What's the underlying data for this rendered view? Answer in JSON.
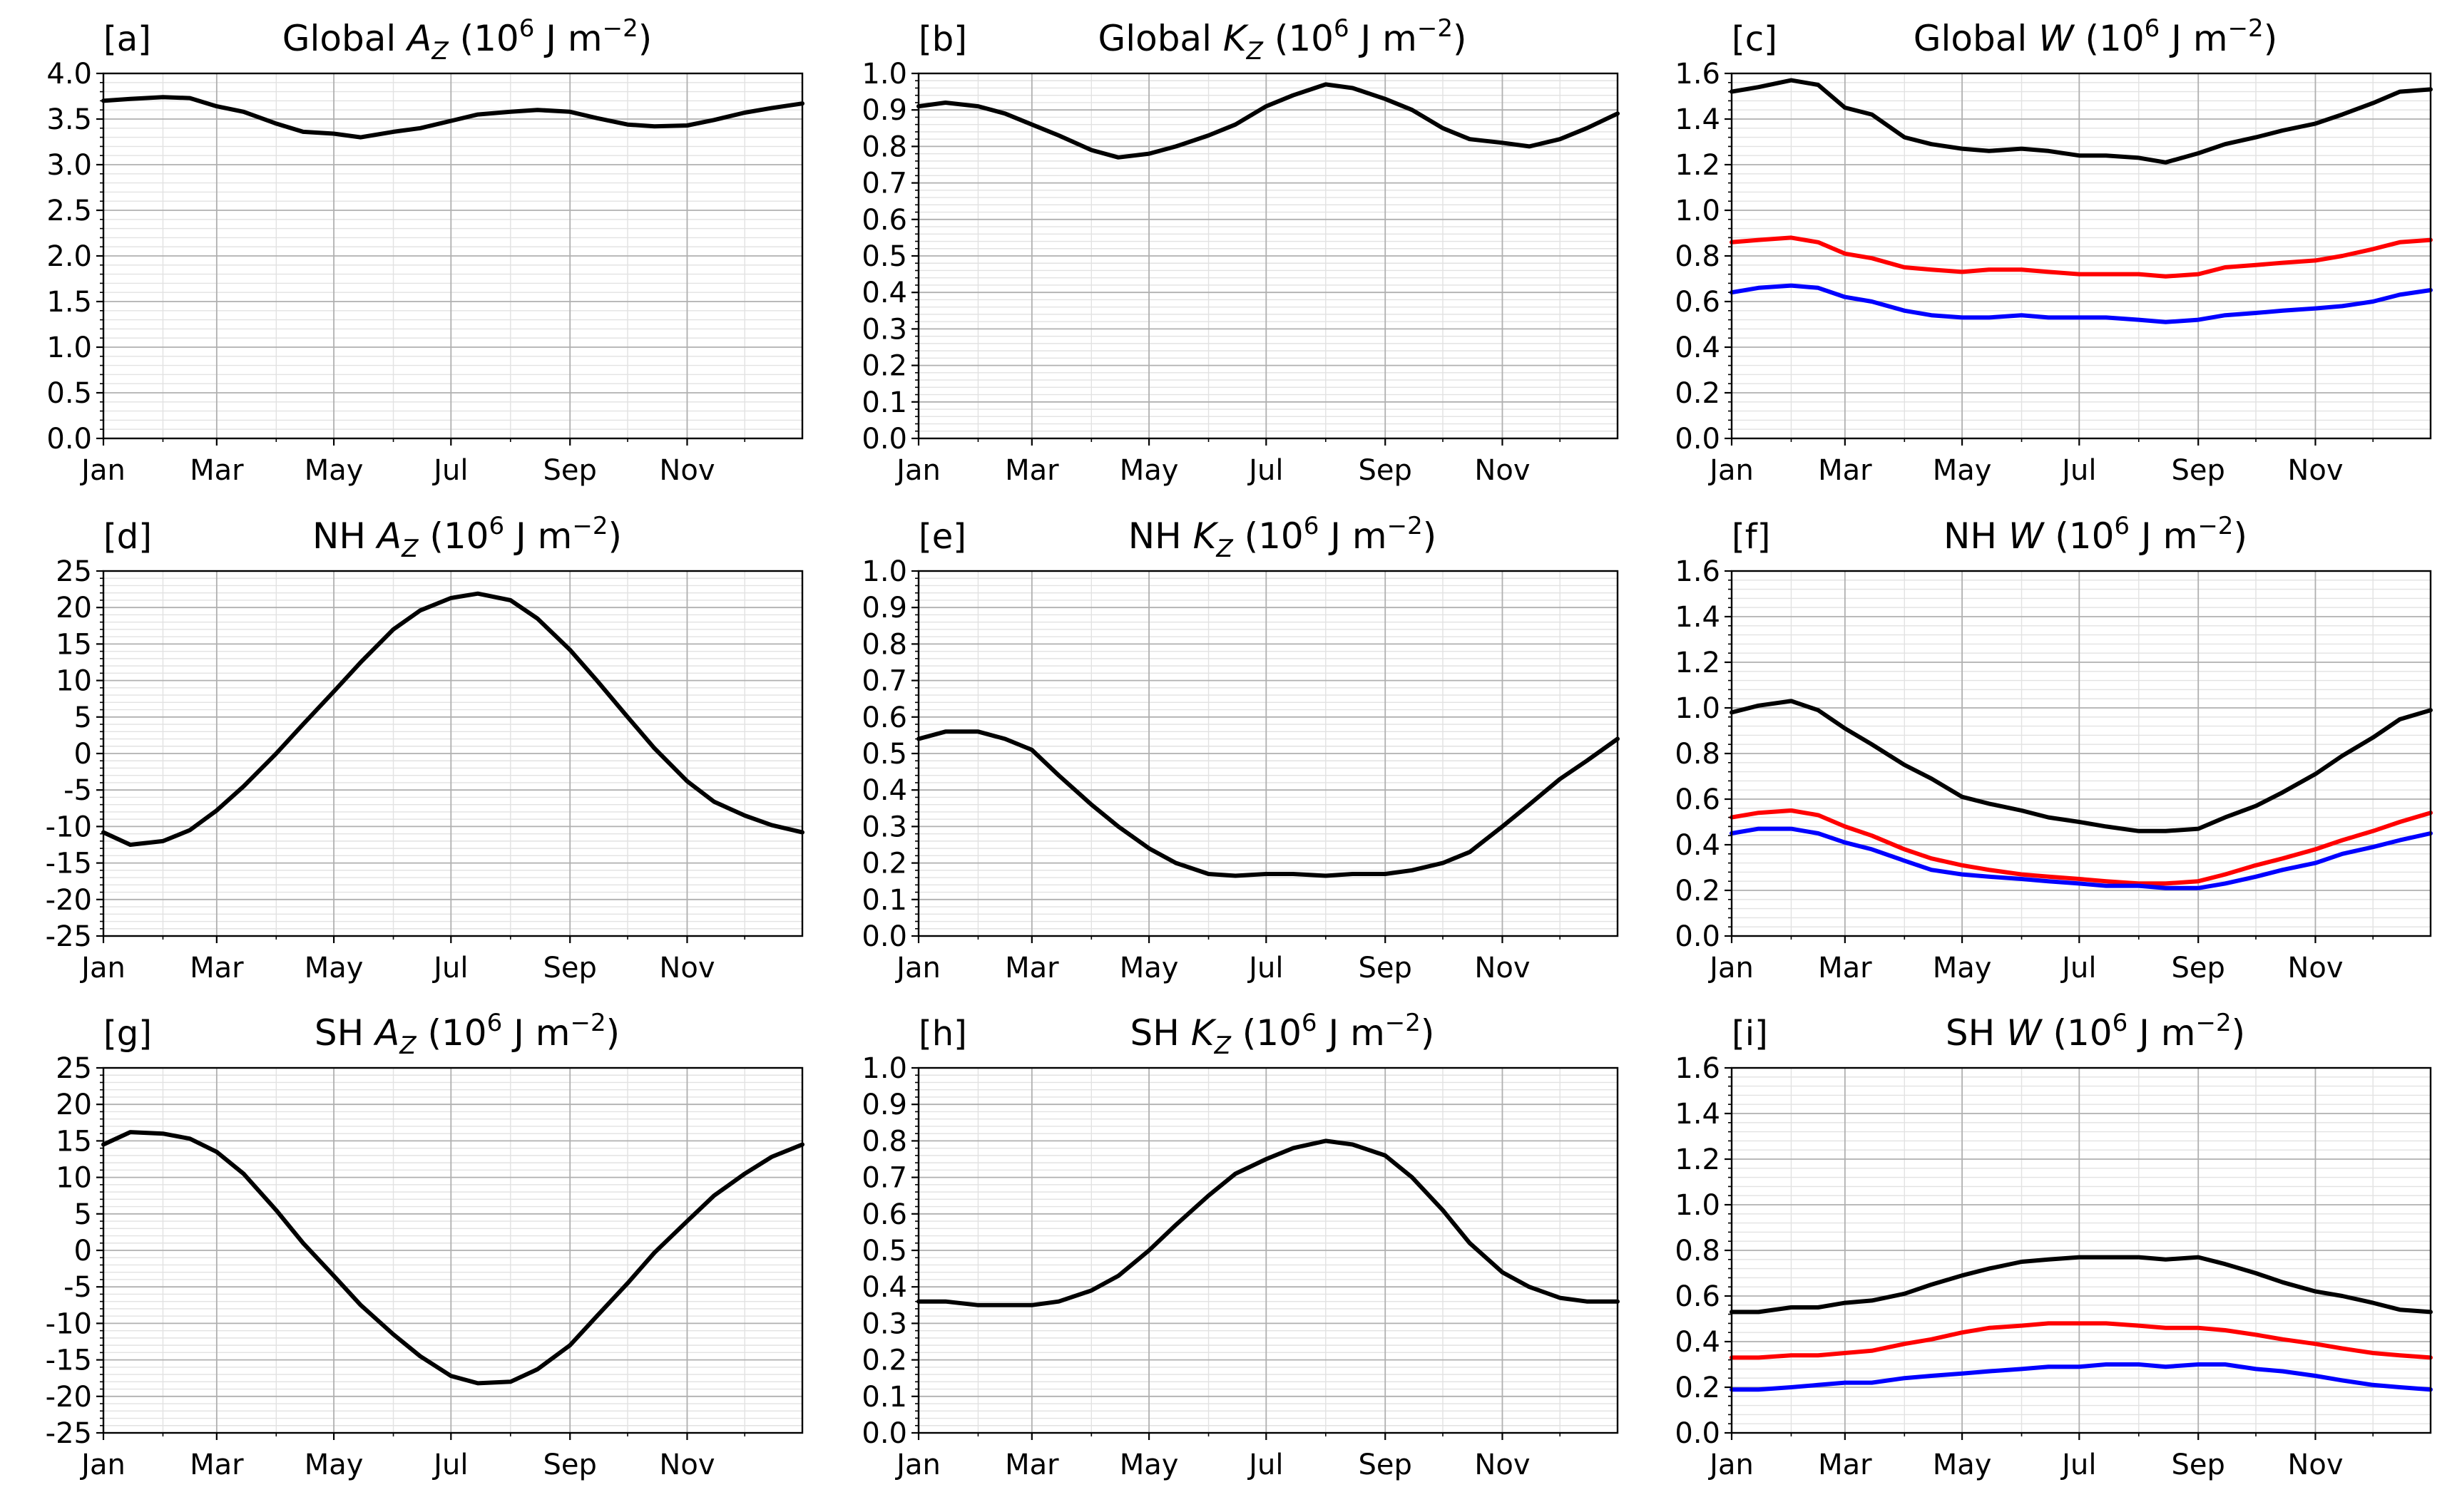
{
  "figure": {
    "months": [
      "Jan",
      "Mar",
      "May",
      "Jul",
      "Sep",
      "Nov"
    ],
    "colors": {
      "line_black": "#000000",
      "line_red": "#ff0000",
      "line_blue": "#0000ff",
      "grid_major": "#b0b0b0",
      "grid_minor": "#e2e2e2"
    }
  },
  "chart_data": [
    {
      "panel": "[a]",
      "title_pre": "Global ",
      "title_sym": "A",
      "title_sub": "Z",
      "type": "line",
      "ylim": [
        0,
        4
      ],
      "yticks": [
        "0.0",
        "0.5",
        "1.0",
        "1.5",
        "2.0",
        "2.5",
        "3.0",
        "3.5",
        "4.0"
      ],
      "x": [
        1,
        15,
        32,
        46,
        60,
        74,
        91,
        105,
        121,
        135,
        152,
        166,
        182,
        196,
        213,
        227,
        244,
        258,
        274,
        288,
        305,
        319,
        335,
        349,
        365
      ],
      "series": [
        {
          "color": "#000000",
          "values": [
            3.7,
            3.72,
            3.74,
            3.73,
            3.64,
            3.58,
            3.45,
            3.36,
            3.34,
            3.3,
            3.36,
            3.4,
            3.48,
            3.55,
            3.58,
            3.6,
            3.58,
            3.51,
            3.44,
            3.42,
            3.43,
            3.49,
            3.57,
            3.62,
            3.67
          ]
        }
      ]
    },
    {
      "panel": "[b]",
      "title_pre": "Global ",
      "title_sym": "K",
      "title_sub": "Z",
      "type": "line",
      "ylim": [
        0,
        1
      ],
      "yticks": [
        "0.0",
        "0.1",
        "0.2",
        "0.3",
        "0.4",
        "0.5",
        "0.6",
        "0.7",
        "0.8",
        "0.9",
        "1.0"
      ],
      "x": [
        1,
        15,
        32,
        46,
        60,
        74,
        91,
        105,
        121,
        135,
        152,
        166,
        182,
        196,
        213,
        227,
        244,
        258,
        274,
        288,
        305,
        319,
        335,
        349,
        365
      ],
      "series": [
        {
          "color": "#000000",
          "values": [
            0.91,
            0.92,
            0.91,
            0.89,
            0.86,
            0.83,
            0.79,
            0.77,
            0.78,
            0.8,
            0.83,
            0.86,
            0.91,
            0.94,
            0.97,
            0.96,
            0.93,
            0.9,
            0.85,
            0.82,
            0.81,
            0.8,
            0.82,
            0.85,
            0.89
          ]
        }
      ]
    },
    {
      "panel": "[c]",
      "title_pre": "Global ",
      "title_sym": "W",
      "title_sub": "",
      "type": "line",
      "ylim": [
        0,
        1.6
      ],
      "yticks": [
        "0.0",
        "0.2",
        "0.4",
        "0.6",
        "0.8",
        "1.0",
        "1.2",
        "1.4",
        "1.6"
      ],
      "x": [
        1,
        15,
        32,
        46,
        60,
        74,
        91,
        105,
        121,
        135,
        152,
        166,
        182,
        196,
        213,
        227,
        244,
        258,
        274,
        288,
        305,
        319,
        335,
        349,
        365
      ],
      "series": [
        {
          "color": "#000000",
          "values": [
            1.52,
            1.54,
            1.57,
            1.55,
            1.45,
            1.42,
            1.32,
            1.29,
            1.27,
            1.26,
            1.27,
            1.26,
            1.24,
            1.24,
            1.23,
            1.21,
            1.25,
            1.29,
            1.32,
            1.35,
            1.38,
            1.42,
            1.47,
            1.52,
            1.53
          ]
        },
        {
          "color": "#ff0000",
          "values": [
            0.86,
            0.87,
            0.88,
            0.86,
            0.81,
            0.79,
            0.75,
            0.74,
            0.73,
            0.74,
            0.74,
            0.73,
            0.72,
            0.72,
            0.72,
            0.71,
            0.72,
            0.75,
            0.76,
            0.77,
            0.78,
            0.8,
            0.83,
            0.86,
            0.87
          ]
        },
        {
          "color": "#0000ff",
          "values": [
            0.64,
            0.66,
            0.67,
            0.66,
            0.62,
            0.6,
            0.56,
            0.54,
            0.53,
            0.53,
            0.54,
            0.53,
            0.53,
            0.53,
            0.52,
            0.51,
            0.52,
            0.54,
            0.55,
            0.56,
            0.57,
            0.58,
            0.6,
            0.63,
            0.65
          ]
        }
      ]
    },
    {
      "panel": "[d]",
      "title_pre": "NH ",
      "title_sym": "A",
      "title_sub": "Z",
      "type": "line",
      "ylim": [
        -25,
        25
      ],
      "yticks": [
        "-25",
        "-20",
        "-15",
        "-10",
        "-5",
        "0",
        "5",
        "10",
        "15",
        "20",
        "25"
      ],
      "x": [
        1,
        15,
        32,
        46,
        60,
        74,
        91,
        105,
        121,
        135,
        152,
        166,
        182,
        196,
        213,
        227,
        244,
        258,
        274,
        288,
        305,
        319,
        335,
        349,
        365
      ],
      "series": [
        {
          "color": "#000000",
          "values": [
            -10.8,
            -12.5,
            -12.0,
            -10.5,
            -7.8,
            -4.5,
            0.0,
            4.0,
            8.5,
            12.5,
            17.0,
            19.6,
            21.3,
            21.9,
            21.0,
            18.5,
            14.2,
            10.0,
            5.0,
            0.7,
            -3.8,
            -6.6,
            -8.5,
            -9.8,
            -10.8
          ]
        }
      ]
    },
    {
      "panel": "[e]",
      "title_pre": "NH ",
      "title_sym": "K",
      "title_sub": "Z",
      "type": "line",
      "ylim": [
        0,
        1
      ],
      "yticks": [
        "0.0",
        "0.1",
        "0.2",
        "0.3",
        "0.4",
        "0.5",
        "0.6",
        "0.7",
        "0.8",
        "0.9",
        "1.0"
      ],
      "x": [
        1,
        15,
        32,
        46,
        60,
        74,
        91,
        105,
        121,
        135,
        152,
        166,
        182,
        196,
        213,
        227,
        244,
        258,
        274,
        288,
        305,
        319,
        335,
        349,
        365
      ],
      "series": [
        {
          "color": "#000000",
          "values": [
            0.54,
            0.56,
            0.56,
            0.54,
            0.51,
            0.44,
            0.36,
            0.3,
            0.24,
            0.2,
            0.17,
            0.165,
            0.17,
            0.17,
            0.165,
            0.17,
            0.17,
            0.18,
            0.2,
            0.23,
            0.3,
            0.36,
            0.43,
            0.48,
            0.54
          ]
        }
      ]
    },
    {
      "panel": "[f]",
      "title_pre": "NH ",
      "title_sym": "W",
      "title_sub": "",
      "type": "line",
      "ylim": [
        0,
        1.6
      ],
      "yticks": [
        "0.0",
        "0.2",
        "0.4",
        "0.6",
        "0.8",
        "1.0",
        "1.2",
        "1.4",
        "1.6"
      ],
      "x": [
        1,
        15,
        32,
        46,
        60,
        74,
        91,
        105,
        121,
        135,
        152,
        166,
        182,
        196,
        213,
        227,
        244,
        258,
        274,
        288,
        305,
        319,
        335,
        349,
        365
      ],
      "series": [
        {
          "color": "#000000",
          "values": [
            0.98,
            1.01,
            1.03,
            0.99,
            0.91,
            0.84,
            0.75,
            0.69,
            0.61,
            0.58,
            0.55,
            0.52,
            0.5,
            0.48,
            0.46,
            0.46,
            0.47,
            0.52,
            0.57,
            0.63,
            0.71,
            0.79,
            0.87,
            0.95,
            0.99
          ]
        },
        {
          "color": "#ff0000",
          "values": [
            0.52,
            0.54,
            0.55,
            0.53,
            0.48,
            0.44,
            0.38,
            0.34,
            0.31,
            0.29,
            0.27,
            0.26,
            0.25,
            0.24,
            0.23,
            0.23,
            0.24,
            0.27,
            0.31,
            0.34,
            0.38,
            0.42,
            0.46,
            0.5,
            0.54
          ]
        },
        {
          "color": "#0000ff",
          "values": [
            0.45,
            0.47,
            0.47,
            0.45,
            0.41,
            0.38,
            0.33,
            0.29,
            0.27,
            0.26,
            0.25,
            0.24,
            0.23,
            0.22,
            0.22,
            0.21,
            0.21,
            0.23,
            0.26,
            0.29,
            0.32,
            0.36,
            0.39,
            0.42,
            0.45
          ]
        }
      ]
    },
    {
      "panel": "[g]",
      "title_pre": "SH ",
      "title_sym": "A",
      "title_sub": "Z",
      "type": "line",
      "ylim": [
        -25,
        25
      ],
      "yticks": [
        "-25",
        "-20",
        "-15",
        "-10",
        "-5",
        "0",
        "5",
        "10",
        "15",
        "20",
        "25"
      ],
      "x": [
        1,
        15,
        32,
        46,
        60,
        74,
        91,
        105,
        121,
        135,
        152,
        166,
        182,
        196,
        213,
        227,
        244,
        258,
        274,
        288,
        305,
        319,
        335,
        349,
        365
      ],
      "series": [
        {
          "color": "#000000",
          "values": [
            14.5,
            16.2,
            16.0,
            15.3,
            13.5,
            10.5,
            5.5,
            1.0,
            -3.5,
            -7.5,
            -11.5,
            -14.5,
            -17.2,
            -18.2,
            -18.0,
            -16.3,
            -13.0,
            -9.0,
            -4.5,
            -0.3,
            4.0,
            7.5,
            10.5,
            12.8,
            14.5
          ]
        }
      ]
    },
    {
      "panel": "[h]",
      "title_pre": "SH ",
      "title_sym": "K",
      "title_sub": "Z",
      "type": "line",
      "ylim": [
        0,
        1
      ],
      "yticks": [
        "0.0",
        "0.1",
        "0.2",
        "0.3",
        "0.4",
        "0.5",
        "0.6",
        "0.7",
        "0.8",
        "0.9",
        "1.0"
      ],
      "x": [
        1,
        15,
        32,
        46,
        60,
        74,
        91,
        105,
        121,
        135,
        152,
        166,
        182,
        196,
        213,
        227,
        244,
        258,
        274,
        288,
        305,
        319,
        335,
        349,
        365
      ],
      "series": [
        {
          "color": "#000000",
          "values": [
            0.36,
            0.36,
            0.35,
            0.35,
            0.35,
            0.36,
            0.39,
            0.43,
            0.5,
            0.57,
            0.65,
            0.71,
            0.75,
            0.78,
            0.8,
            0.79,
            0.76,
            0.7,
            0.61,
            0.52,
            0.44,
            0.4,
            0.37,
            0.36,
            0.36
          ]
        }
      ]
    },
    {
      "panel": "[i]",
      "title_pre": "SH ",
      "title_sym": "W",
      "title_sub": "",
      "type": "line",
      "ylim": [
        0,
        1.6
      ],
      "yticks": [
        "0.0",
        "0.2",
        "0.4",
        "0.6",
        "0.8",
        "1.0",
        "1.2",
        "1.4",
        "1.6"
      ],
      "x": [
        1,
        15,
        32,
        46,
        60,
        74,
        91,
        105,
        121,
        135,
        152,
        166,
        182,
        196,
        213,
        227,
        244,
        258,
        274,
        288,
        305,
        319,
        335,
        349,
        365
      ],
      "series": [
        {
          "color": "#000000",
          "values": [
            0.53,
            0.53,
            0.55,
            0.55,
            0.57,
            0.58,
            0.61,
            0.65,
            0.69,
            0.72,
            0.75,
            0.76,
            0.77,
            0.77,
            0.77,
            0.76,
            0.77,
            0.74,
            0.7,
            0.66,
            0.62,
            0.6,
            0.57,
            0.54,
            0.53
          ]
        },
        {
          "color": "#ff0000",
          "values": [
            0.33,
            0.33,
            0.34,
            0.34,
            0.35,
            0.36,
            0.39,
            0.41,
            0.44,
            0.46,
            0.47,
            0.48,
            0.48,
            0.48,
            0.47,
            0.46,
            0.46,
            0.45,
            0.43,
            0.41,
            0.39,
            0.37,
            0.35,
            0.34,
            0.33
          ]
        },
        {
          "color": "#0000ff",
          "values": [
            0.19,
            0.19,
            0.2,
            0.21,
            0.22,
            0.22,
            0.24,
            0.25,
            0.26,
            0.27,
            0.28,
            0.29,
            0.29,
            0.3,
            0.3,
            0.29,
            0.3,
            0.3,
            0.28,
            0.27,
            0.25,
            0.23,
            0.21,
            0.2,
            0.19
          ]
        }
      ]
    }
  ]
}
